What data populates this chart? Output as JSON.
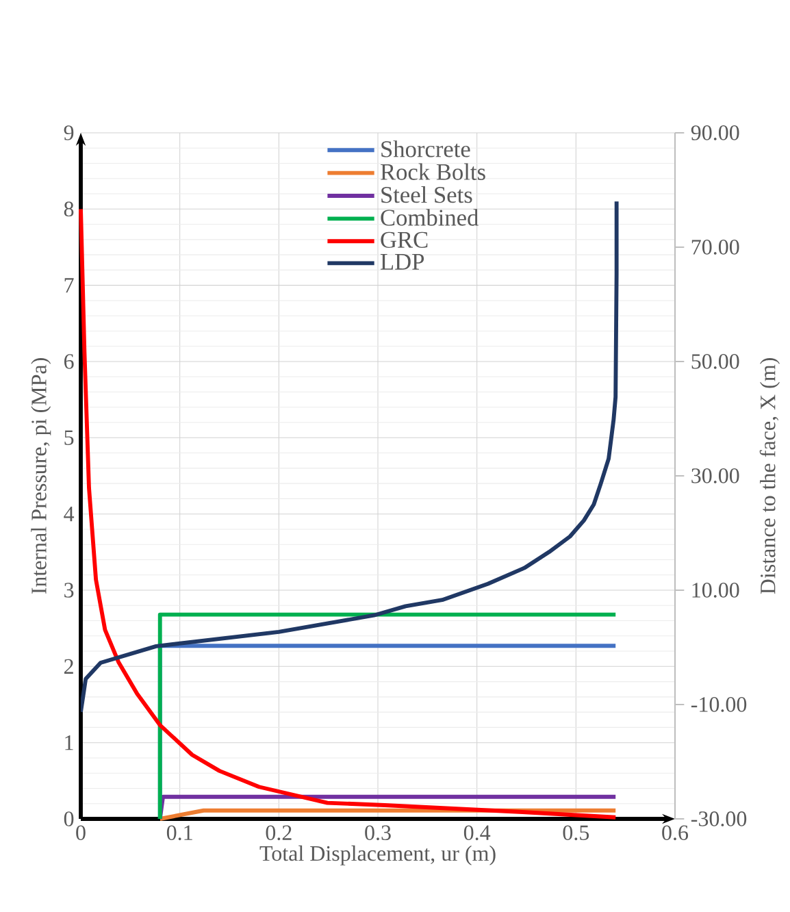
{
  "chart_data": {
    "type": "line",
    "xlabel": "Total Displacement, ur (m)",
    "ylabel": "Internal Pressure, pi (MPa)",
    "y2label": "Distance to the face, X (m)",
    "xlim": [
      0,
      0.6
    ],
    "xticks": [
      0,
      0.1,
      0.2,
      0.3,
      0.4,
      0.5,
      0.6
    ],
    "ylim": [
      0,
      9
    ],
    "yticks": [
      0,
      1,
      2,
      3,
      4,
      5,
      6,
      7,
      8,
      9
    ],
    "y2lim": [
      -30,
      90
    ],
    "y2ticks": [
      {
        "value": -30,
        "label": "-30.00"
      },
      {
        "value": -10,
        "label": "-10.00"
      },
      {
        "value": 10,
        "label": "10.00"
      },
      {
        "value": 30,
        "label": "30.00"
      },
      {
        "value": 50,
        "label": "50.00"
      },
      {
        "value": 70,
        "label": "70.00"
      },
      {
        "value": 90,
        "label": "90.00"
      }
    ],
    "grid": true,
    "legend": "top",
    "series": [
      {
        "name": "Shorcrete",
        "color": "#4472c4",
        "x": [
          0.08,
          0.08,
          0.54
        ],
        "values": [
          0,
          2.27,
          2.27
        ]
      },
      {
        "name": "Rock Bolts",
        "color": "#ed7d31",
        "x": [
          0.08,
          0.124,
          0.54
        ],
        "values": [
          0,
          0.11,
          0.11
        ]
      },
      {
        "name": "Steel Sets",
        "color": "#7030a0",
        "x": [
          0.08,
          0.083,
          0.54
        ],
        "values": [
          0,
          0.29,
          0.29
        ]
      },
      {
        "name": "Combined",
        "color": "#00b050",
        "x": [
          0.08,
          0.08,
          0.54
        ],
        "values": [
          0,
          2.68,
          2.68
        ]
      },
      {
        "name": "GRC",
        "color": "#ff0000",
        "x": [
          0,
          0.0037,
          0.0083,
          0.0153,
          0.0245,
          0.038,
          0.057,
          0.08,
          0.1125,
          0.14,
          0.18,
          0.249,
          0.307,
          0.446,
          0.54
        ],
        "values": [
          8.0,
          6.13,
          4.34,
          3.14,
          2.48,
          2.06,
          1.64,
          1.23,
          0.84,
          0.63,
          0.42,
          0.21,
          0.18,
          0.09,
          0.02
        ]
      },
      {
        "name": "LDP",
        "color": "#203864",
        "axis": "y2",
        "x": [
          0,
          0.005,
          0.02,
          0.076,
          0.2,
          0.296,
          0.328,
          0.365,
          0.411,
          0.448,
          0.473,
          0.494,
          0.508,
          0.518,
          0.525,
          0.533,
          0.538,
          0.54,
          0.541,
          0.541
        ],
        "values": [
          -11.3,
          -5.5,
          -2.7,
          0.2,
          2.7,
          5.6,
          7.2,
          8.3,
          11.1,
          13.9,
          16.7,
          19.4,
          22.2,
          25.0,
          28.6,
          33.0,
          39.8,
          43.8,
          65.3,
          78.0
        ]
      }
    ]
  }
}
